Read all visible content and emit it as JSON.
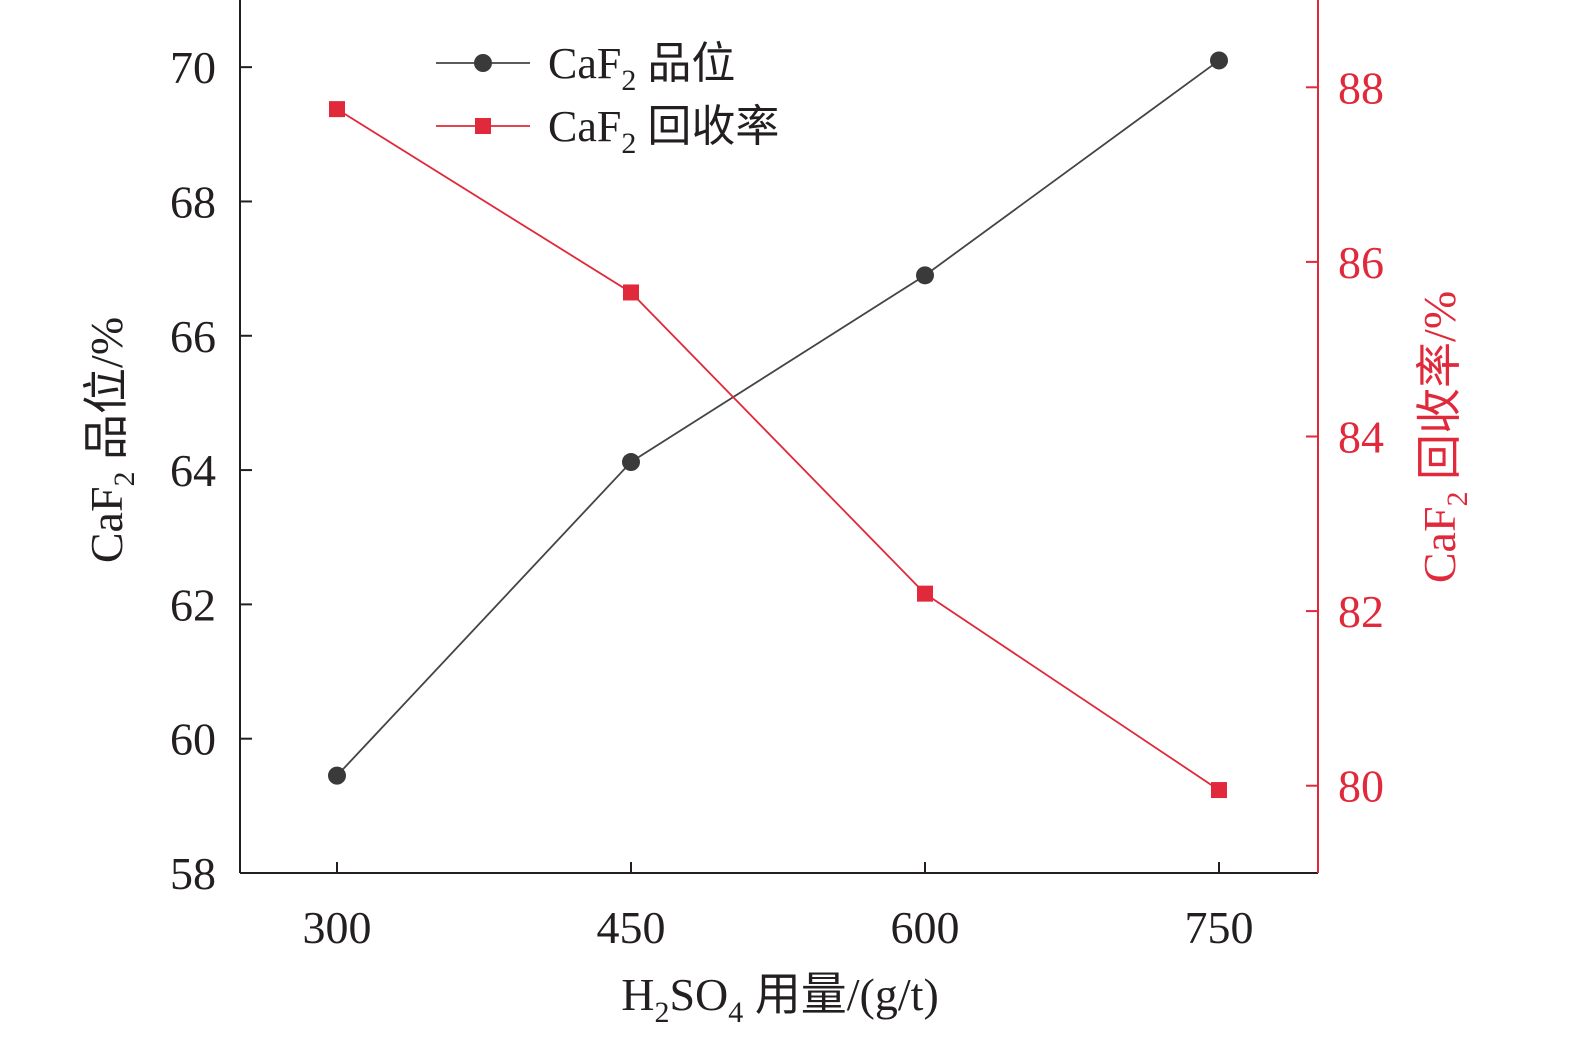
{
  "chart_data": {
    "type": "line",
    "x_label": {
      "main": "H",
      "sub1": "2",
      "mid": "SO",
      "sub2": "4",
      "rest": " 用量/(g/t)"
    },
    "y_left_label": {
      "main": "CaF",
      "sub": "2",
      "rest": " 品位/%"
    },
    "y_right_label": {
      "main": "CaF",
      "sub": "2",
      "rest": " 回收率/%"
    },
    "categories": [
      "300",
      "450",
      "600",
      "750"
    ],
    "x": [
      300,
      450,
      600,
      750
    ],
    "x_ticks": [
      "300",
      "450",
      "600",
      "750"
    ],
    "y_left": {
      "range": [
        58,
        71
      ],
      "ticks": [
        "58",
        "60",
        "62",
        "64",
        "66",
        "68",
        "70"
      ],
      "color": "#231f20"
    },
    "y_right": {
      "range": [
        79,
        89
      ],
      "ticks": [
        "80",
        "82",
        "84",
        "86",
        "88"
      ],
      "color": "#e0293a"
    },
    "series": [
      {
        "name": "CaF2 品位",
        "legend": {
          "main": "CaF",
          "sub": "2",
          "rest": " 品位"
        },
        "axis": "left",
        "marker": "circle",
        "color": "#444444",
        "marker_color": "#3a3a3a",
        "values": [
          59.45,
          64.12,
          66.9,
          70.1
        ]
      },
      {
        "name": "CaF2 回收率",
        "legend": {
          "main": "CaF",
          "sub": "2",
          "rest": " 回收率"
        },
        "axis": "right",
        "marker": "square",
        "color": "#e0293a",
        "marker_color": "#e0293a",
        "values": [
          87.75,
          85.65,
          82.2,
          79.95
        ]
      }
    ],
    "legend_position": "top-left",
    "grid": false
  }
}
